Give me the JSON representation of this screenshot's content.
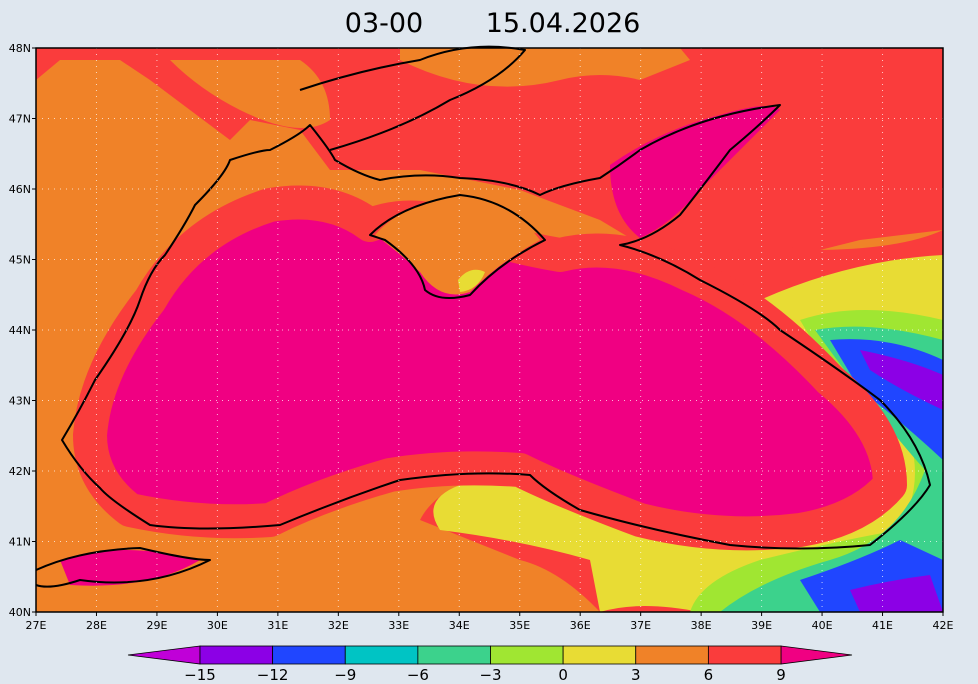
{
  "title": {
    "time": "03-00",
    "date": "15.04.2026"
  },
  "map": {
    "lon_range": [
      27,
      42
    ],
    "lat_range": [
      40,
      48
    ],
    "lon_ticks": [
      {
        "value": 27,
        "label": "27E"
      },
      {
        "value": 28,
        "label": "28E"
      },
      {
        "value": 29,
        "label": "29E"
      },
      {
        "value": 30,
        "label": "30E"
      },
      {
        "value": 31,
        "label": "31E"
      },
      {
        "value": 32,
        "label": "32E"
      },
      {
        "value": 33,
        "label": "33E"
      },
      {
        "value": 34,
        "label": "34E"
      },
      {
        "value": 35,
        "label": "35E"
      },
      {
        "value": 36,
        "label": "36E"
      },
      {
        "value": 37,
        "label": "37E"
      },
      {
        "value": 38,
        "label": "38E"
      },
      {
        "value": 39,
        "label": "39E"
      },
      {
        "value": 40,
        "label": "40E"
      },
      {
        "value": 41,
        "label": "41E"
      },
      {
        "value": 42,
        "label": "42E"
      }
    ],
    "lat_ticks": [
      {
        "value": 40,
        "label": "40N"
      },
      {
        "value": 41,
        "label": "41N"
      },
      {
        "value": 42,
        "label": "42N"
      },
      {
        "value": 43,
        "label": "43N"
      },
      {
        "value": 44,
        "label": "44N"
      },
      {
        "value": 45,
        "label": "45N"
      },
      {
        "value": 46,
        "label": "46N"
      },
      {
        "value": 47,
        "label": "47N"
      },
      {
        "value": 48,
        "label": "48N"
      }
    ]
  },
  "colorbar": {
    "range": [
      -15,
      9
    ],
    "ticks": [
      {
        "value": -15,
        "label": "−15"
      },
      {
        "value": -12,
        "label": "−12"
      },
      {
        "value": -9,
        "label": "−9"
      },
      {
        "value": -6,
        "label": "−6"
      },
      {
        "value": -3,
        "label": "−3"
      },
      0,
      3,
      6,
      9
    ],
    "colors": [
      "#c000d8",
      "#8c00e6",
      "#2046ff",
      "#00c4c4",
      "#3cd28c",
      "#a0e632",
      "#e8dc34",
      "#f08228",
      "#fa3c3c",
      "#f00082"
    ]
  }
}
